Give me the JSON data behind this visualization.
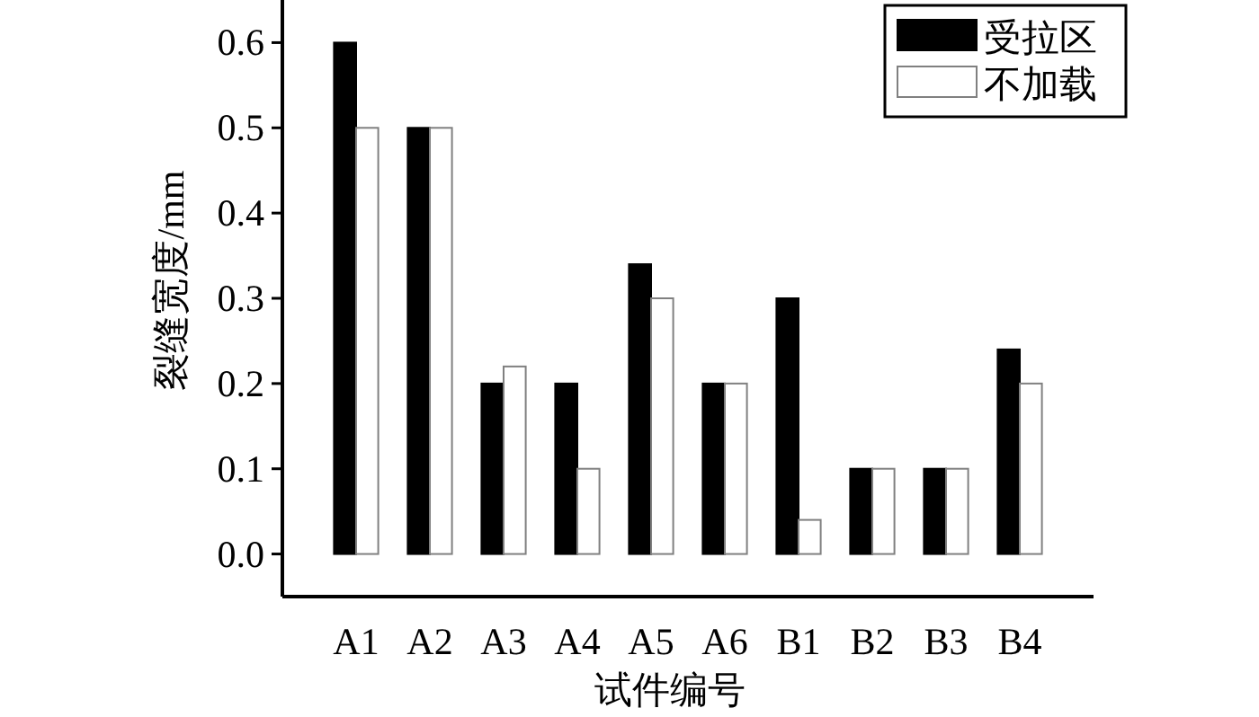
{
  "chart_data": {
    "type": "bar",
    "xlabel": "试件编号",
    "ylabel": "裂缝宽度/mm",
    "categories": [
      "A1",
      "A2",
      "A3",
      "A4",
      "A5",
      "A6",
      "B1",
      "B2",
      "B3",
      "B4"
    ],
    "series": [
      {
        "name": "受拉区",
        "color": "#000000",
        "values": [
          0.6,
          0.5,
          0.2,
          0.2,
          0.34,
          0.2,
          0.3,
          0.1,
          0.1,
          0.24
        ]
      },
      {
        "name": "不加载",
        "color": "#ffffff",
        "values": [
          0.5,
          0.5,
          0.22,
          0.1,
          0.3,
          0.2,
          0.04,
          0.1,
          0.1,
          0.2
        ]
      }
    ],
    "ylim": [
      -0.05,
      0.65
    ],
    "yticks": [
      {
        "value": 0,
        "label": "0.0"
      },
      {
        "value": 0.1,
        "label": "0.1"
      },
      {
        "value": 0.2,
        "label": "0.2"
      },
      {
        "value": 0.3,
        "label": "0.3"
      },
      {
        "value": 0.4,
        "label": "0.4"
      },
      {
        "value": 0.5,
        "label": "0.5"
      },
      {
        "value": 0.6,
        "label": "0.6"
      }
    ],
    "legend": "top right"
  }
}
